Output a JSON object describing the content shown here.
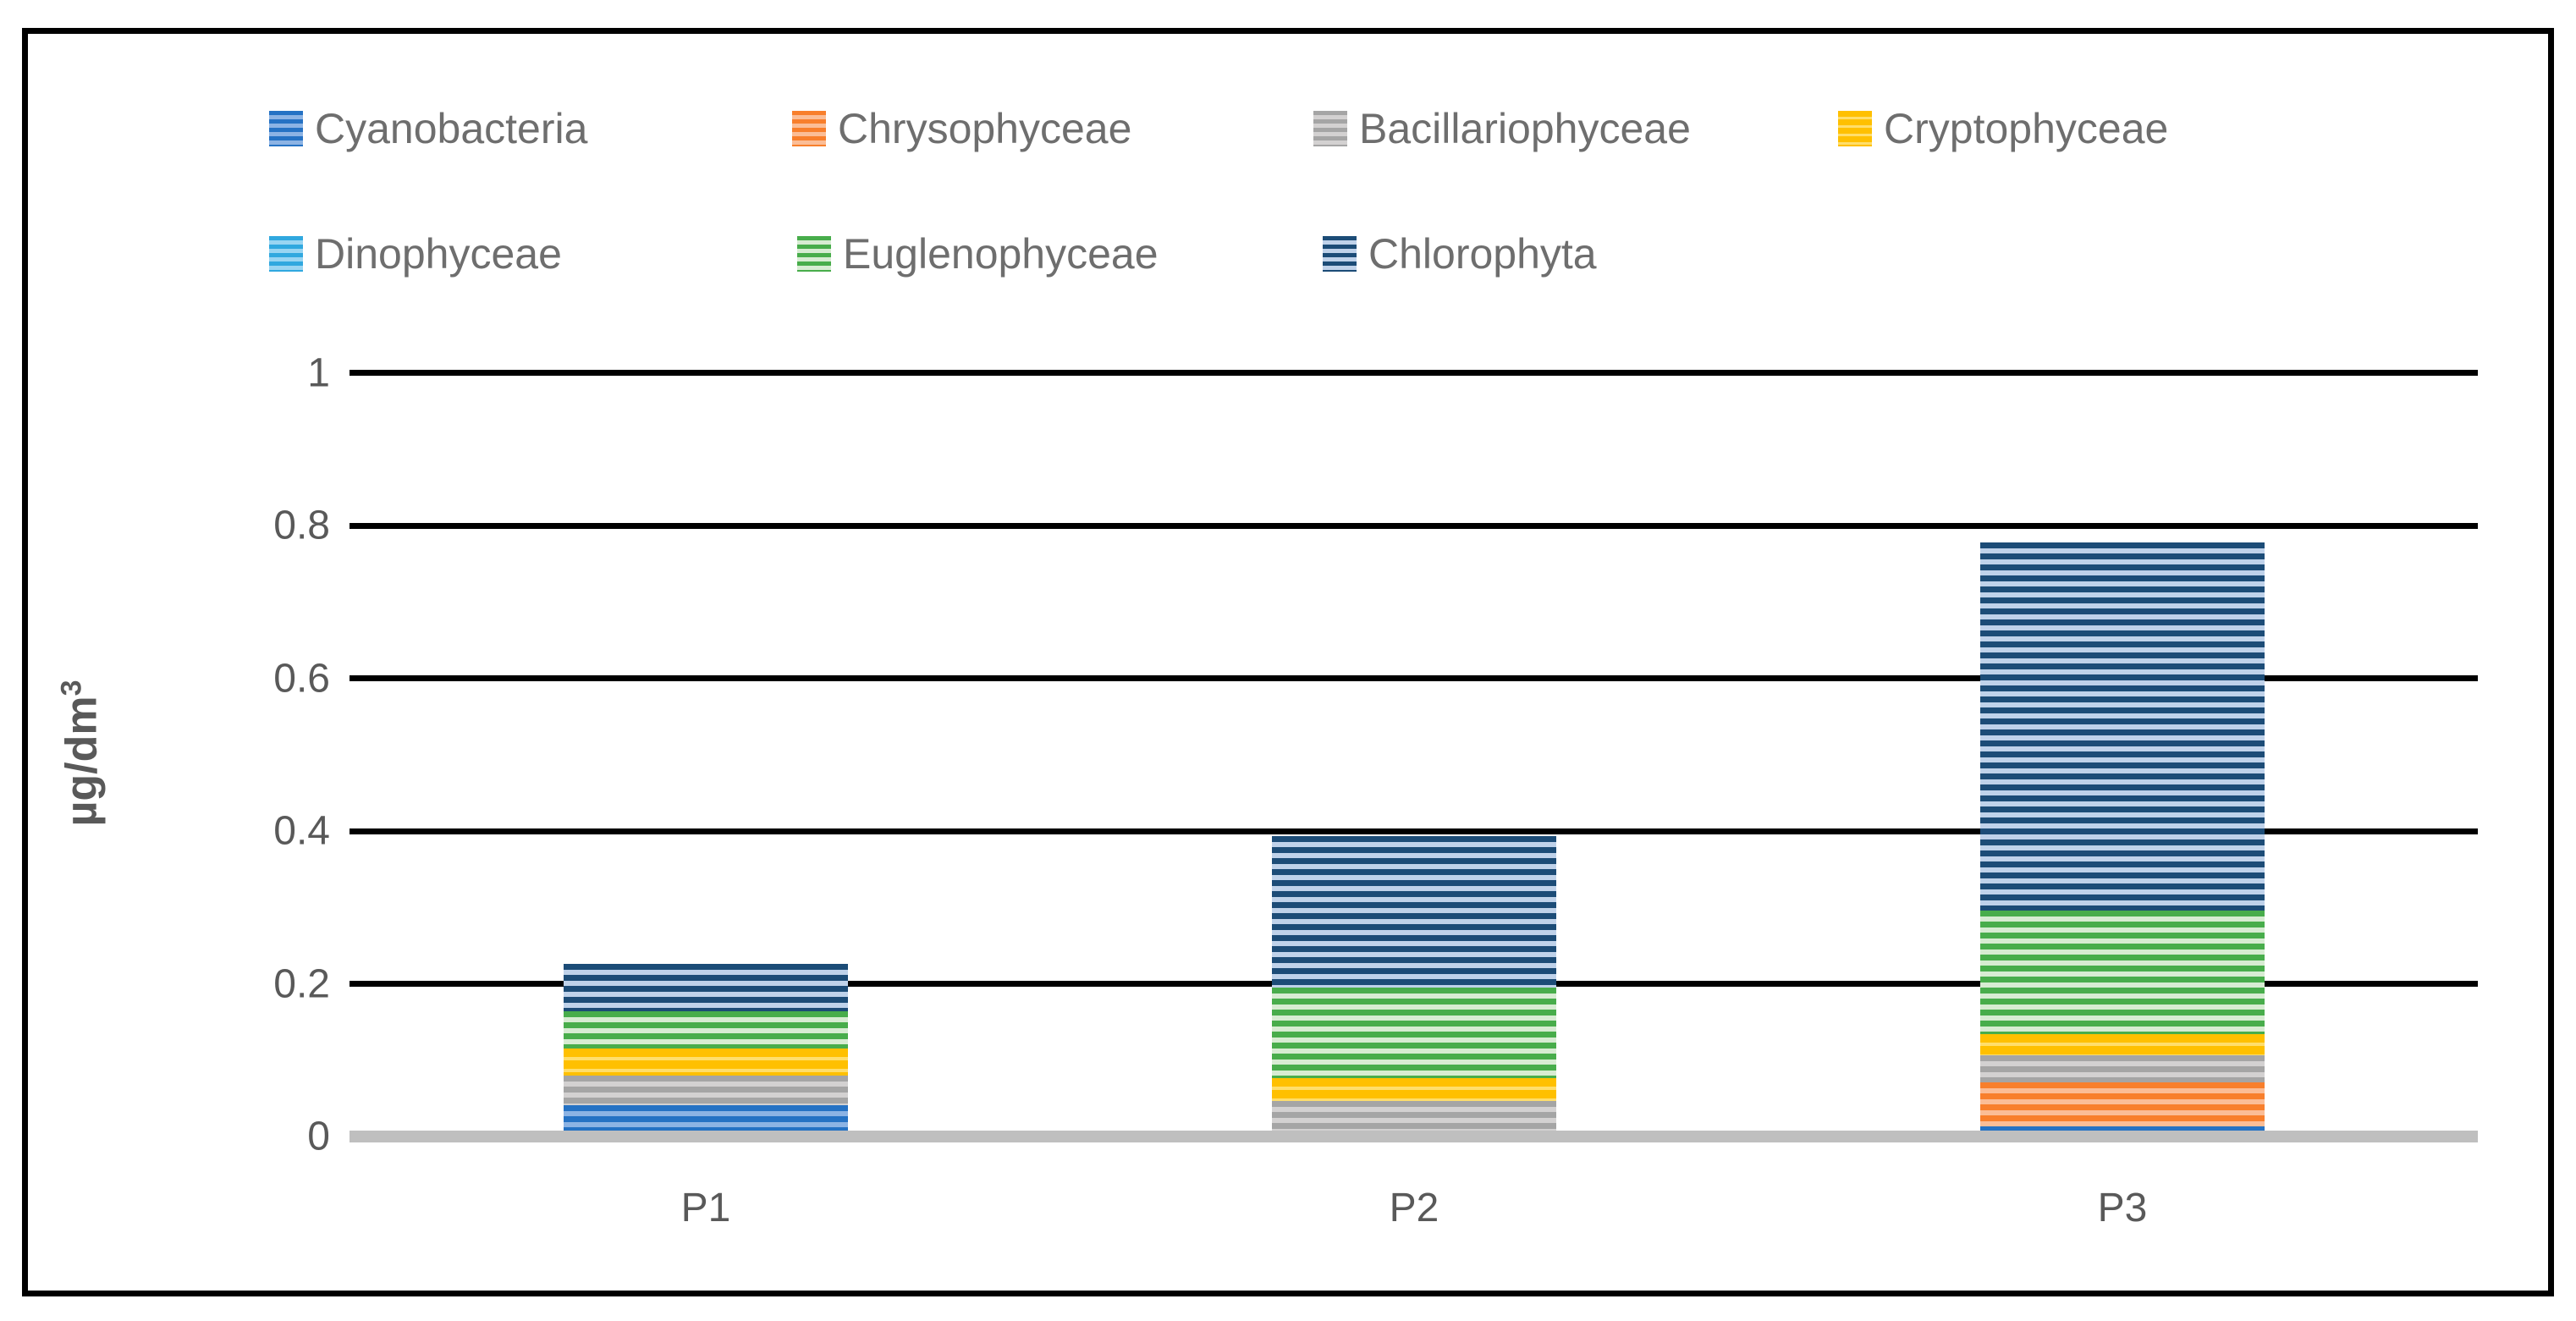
{
  "figure": {
    "background_color": "#ffffff",
    "border_color": "#000000"
  },
  "chart_data": {
    "type": "bar",
    "stacked": true,
    "title": "",
    "xlabel": "",
    "ylabel": "µg/dm³",
    "ylabel_parts": {
      "base": "µg/dm",
      "sup": "3"
    },
    "ylim": [
      0,
      1
    ],
    "yticks": [
      0,
      0.2,
      0.4,
      0.6,
      0.8,
      1
    ],
    "ytick_labels": [
      "0",
      "0.2",
      "0.4",
      "0.6",
      "0.8",
      "1"
    ],
    "grid": true,
    "legend_position": "top",
    "categories": [
      "P1",
      "P2",
      "P3"
    ],
    "series": [
      {
        "name": "Cyanobacteria",
        "color": "#2572C4",
        "stripe_light": "#8CB3E4",
        "values": [
          0.041,
          0,
          0.013
        ]
      },
      {
        "name": "Chrysophyceae",
        "color": "#F87F2C",
        "stripe_light": "#FBBD96",
        "values": [
          0,
          0,
          0.058
        ]
      },
      {
        "name": "Bacillariophyceae",
        "color": "#A5A5A5",
        "stripe_light": "#D3D1D1",
        "values": [
          0.039,
          0.046,
          0.035
        ]
      },
      {
        "name": "Cryptophyceae",
        "color": "#FFC000",
        "stripe_light": "#FFDE6B",
        "values": [
          0.036,
          0.03,
          0.028
        ]
      },
      {
        "name": "Dinophyceae",
        "color": "#30A8DF",
        "stripe_light": "#99D5F2",
        "values": [
          0,
          0,
          0
        ]
      },
      {
        "name": "Euglenophyceae",
        "color": "#48AD4B",
        "stripe_light": "#D7ECD2",
        "values": [
          0.049,
          0.119,
          0.162
        ]
      },
      {
        "name": "Chlorophyta",
        "color": "#1C4C77",
        "stripe_light": "#BFD2EA",
        "values": [
          0.062,
          0.198,
          0.482
        ]
      }
    ],
    "stack_totals": [
      0.227,
      0.393,
      0.778
    ],
    "axis_colors": {
      "gridline": "#000000",
      "baseline": "#BFBFBF",
      "tick_text": "#595959",
      "legend_text": "#6E6E6E"
    }
  }
}
